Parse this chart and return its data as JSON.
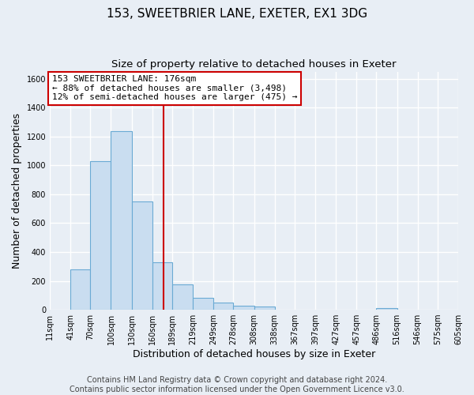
{
  "title": "153, SWEETBRIER LANE, EXETER, EX1 3DG",
  "subtitle": "Size of property relative to detached houses in Exeter",
  "xlabel": "Distribution of detached houses by size in Exeter",
  "ylabel": "Number of detached properties",
  "bin_edges": [
    11,
    41,
    70,
    100,
    130,
    160,
    189,
    219,
    249,
    278,
    308,
    338,
    367,
    397,
    427,
    457,
    486,
    516,
    546,
    575,
    605
  ],
  "bin_heights": [
    0,
    278,
    1030,
    1235,
    752,
    330,
    175,
    85,
    50,
    30,
    20,
    0,
    0,
    0,
    0,
    0,
    12,
    0,
    0,
    0
  ],
  "bar_facecolor": "#c9ddf0",
  "bar_edgecolor": "#6aaad4",
  "vline_x": 176,
  "vline_color": "#cc0000",
  "annotation_box_edgecolor": "#cc0000",
  "annotation_lines": [
    "153 SWEETBRIER LANE: 176sqm",
    "← 88% of detached houses are smaller (3,498)",
    "12% of semi-detached houses are larger (475) →"
  ],
  "ylim": [
    0,
    1650
  ],
  "yticks": [
    0,
    200,
    400,
    600,
    800,
    1000,
    1200,
    1400,
    1600
  ],
  "bin_labels": [
    "11sqm",
    "41sqm",
    "70sqm",
    "100sqm",
    "130sqm",
    "160sqm",
    "189sqm",
    "219sqm",
    "249sqm",
    "278sqm",
    "308sqm",
    "338sqm",
    "367sqm",
    "397sqm",
    "427sqm",
    "457sqm",
    "486sqm",
    "516sqm",
    "546sqm",
    "575sqm",
    "605sqm"
  ],
  "footer_lines": [
    "Contains HM Land Registry data © Crown copyright and database right 2024.",
    "Contains public sector information licensed under the Open Government Licence v3.0."
  ],
  "fig_bg_color": "#e8eef5",
  "plot_bg_color": "#e8eef5",
  "grid_color": "#ffffff",
  "title_fontsize": 11,
  "subtitle_fontsize": 9.5,
  "axis_label_fontsize": 9,
  "tick_fontsize": 7,
  "annotation_fontsize": 8,
  "footer_fontsize": 7
}
